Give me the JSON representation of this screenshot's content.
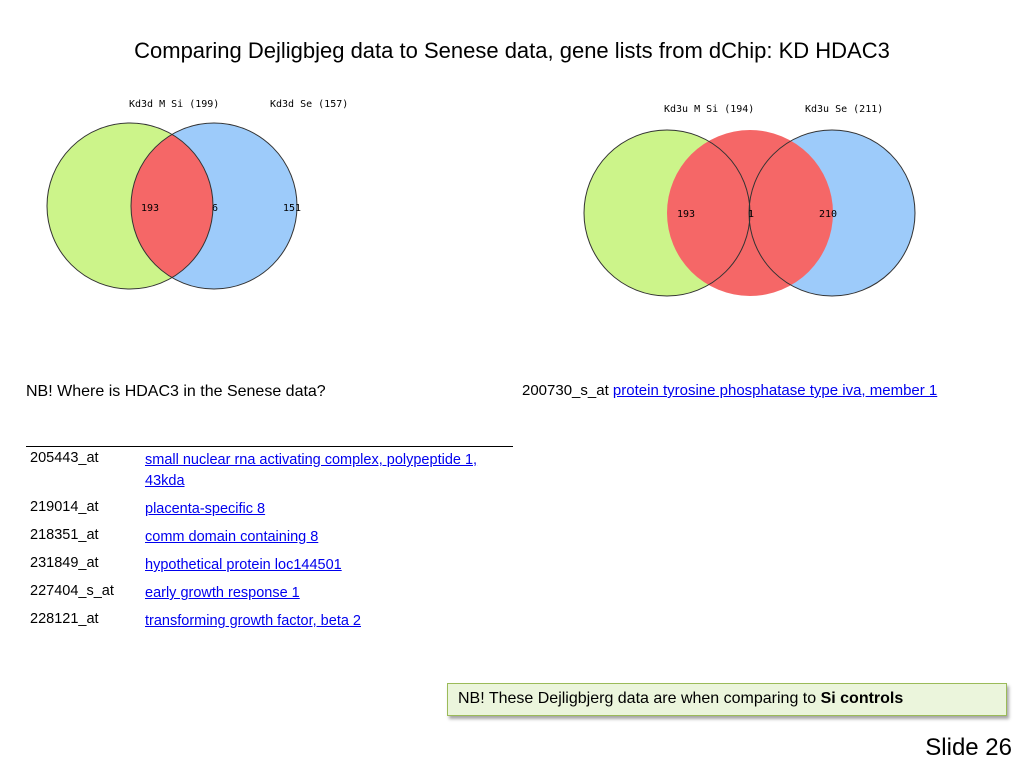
{
  "title": "Comparing Dejligbjeg data to Senese data, gene lists from dChip: KD HDAC3",
  "colors": {
    "left_circle": "#ccf48a",
    "right_circle": "#9dcbfa",
    "overlap": "#f56767",
    "outline": "#333333",
    "link": "#0000ee",
    "callout_bg": "#ebf5dc",
    "callout_border": "#9bbb59"
  },
  "venn_left": {
    "label_a": "Kd3d M Si (199)",
    "label_b": "Kd3d Se (157)",
    "only_a": "193",
    "overlap": "6",
    "only_b": "151"
  },
  "venn_right": {
    "label_a": "Kd3u M Si (194)",
    "label_b": "Kd3u Se (211)",
    "only_a": "193",
    "overlap": "1",
    "only_b": "210"
  },
  "note_hdac3": "NB! Where is HDAC3 in the Senese data?",
  "right_gene": {
    "id": "200730_s_at",
    "desc": "protein tyrosine phosphatase type iva, member 1"
  },
  "gene_table": [
    {
      "id": "205443_at",
      "desc": "small nuclear rna activating complex, polypeptide 1, 43kda"
    },
    {
      "id": "219014_at",
      "desc": "placenta-specific 8"
    },
    {
      "id": "218351_at",
      "desc": "comm domain containing 8"
    },
    {
      "id": "231849_at",
      "desc": "hypothetical protein loc144501"
    },
    {
      "id": "227404_s_at",
      "desc": "early growth response 1"
    },
    {
      "id": "228121_at",
      "desc": "transforming growth factor, beta 2"
    }
  ],
  "callout": {
    "text": "NB! These Dejligbjerg data are when comparing to ",
    "bold": "Si controls"
  },
  "slide_number": "Slide 26"
}
